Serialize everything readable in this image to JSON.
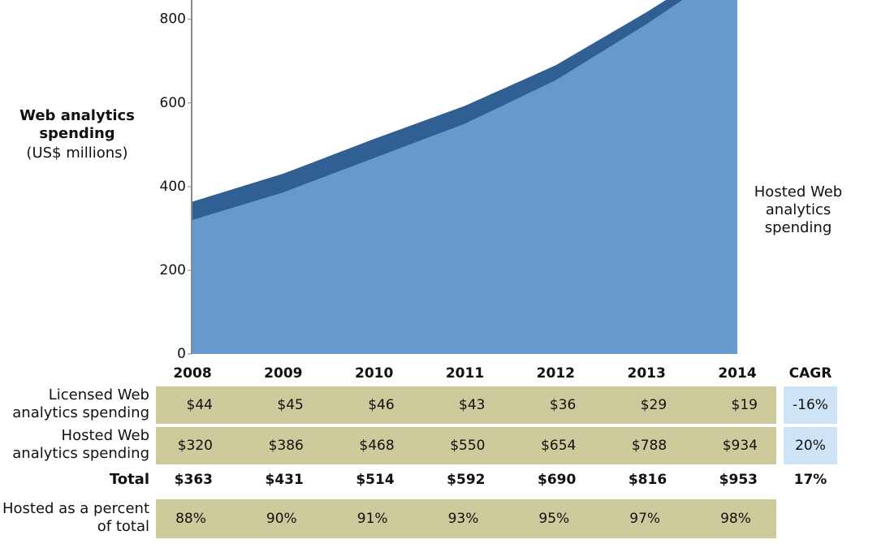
{
  "chart_data": {
    "type": "area",
    "y_label": "Web analytics spending",
    "y_unit": "(US$ millions)",
    "categories": [
      "2008",
      "2009",
      "2010",
      "2011",
      "2012",
      "2013",
      "2014"
    ],
    "ylim": [
      0,
      846
    ],
    "yticks": [
      0,
      200,
      400,
      600,
      800
    ],
    "series": [
      {
        "name": "Hosted Web analytics spending",
        "color": "#6699cc",
        "values": [
          320,
          386,
          468,
          550,
          654,
          788,
          934
        ],
        "value_labels": [
          "$320",
          "$386",
          "$468",
          "$550",
          "$654",
          "$788",
          "$934"
        ]
      },
      {
        "name": "Licensed Web analytics spending",
        "color": "#2f5f93",
        "values": [
          44,
          45,
          46,
          43,
          36,
          29,
          19
        ],
        "value_labels": [
          "$44",
          "$45",
          "$46",
          "$43",
          "$36",
          "$29",
          "$19"
        ]
      }
    ],
    "total": {
      "name": "Total",
      "values": [
        363,
        431,
        514,
        592,
        690,
        816,
        953
      ],
      "value_labels": [
        "$363",
        "$431",
        "$514",
        "$592",
        "$690",
        "$816",
        "$953"
      ]
    },
    "hosted_share": {
      "name": "Hosted as a percent of total",
      "values": [
        88,
        90,
        91,
        93,
        95,
        97,
        98
      ],
      "value_labels": [
        "88%",
        "90%",
        "91%",
        "93%",
        "95%",
        "97%",
        "98%"
      ]
    },
    "cagr": {
      "header": "CAGR",
      "values": [
        -16,
        20,
        17
      ],
      "value_labels": [
        "-16%",
        "20%",
        "17%"
      ]
    }
  }
}
